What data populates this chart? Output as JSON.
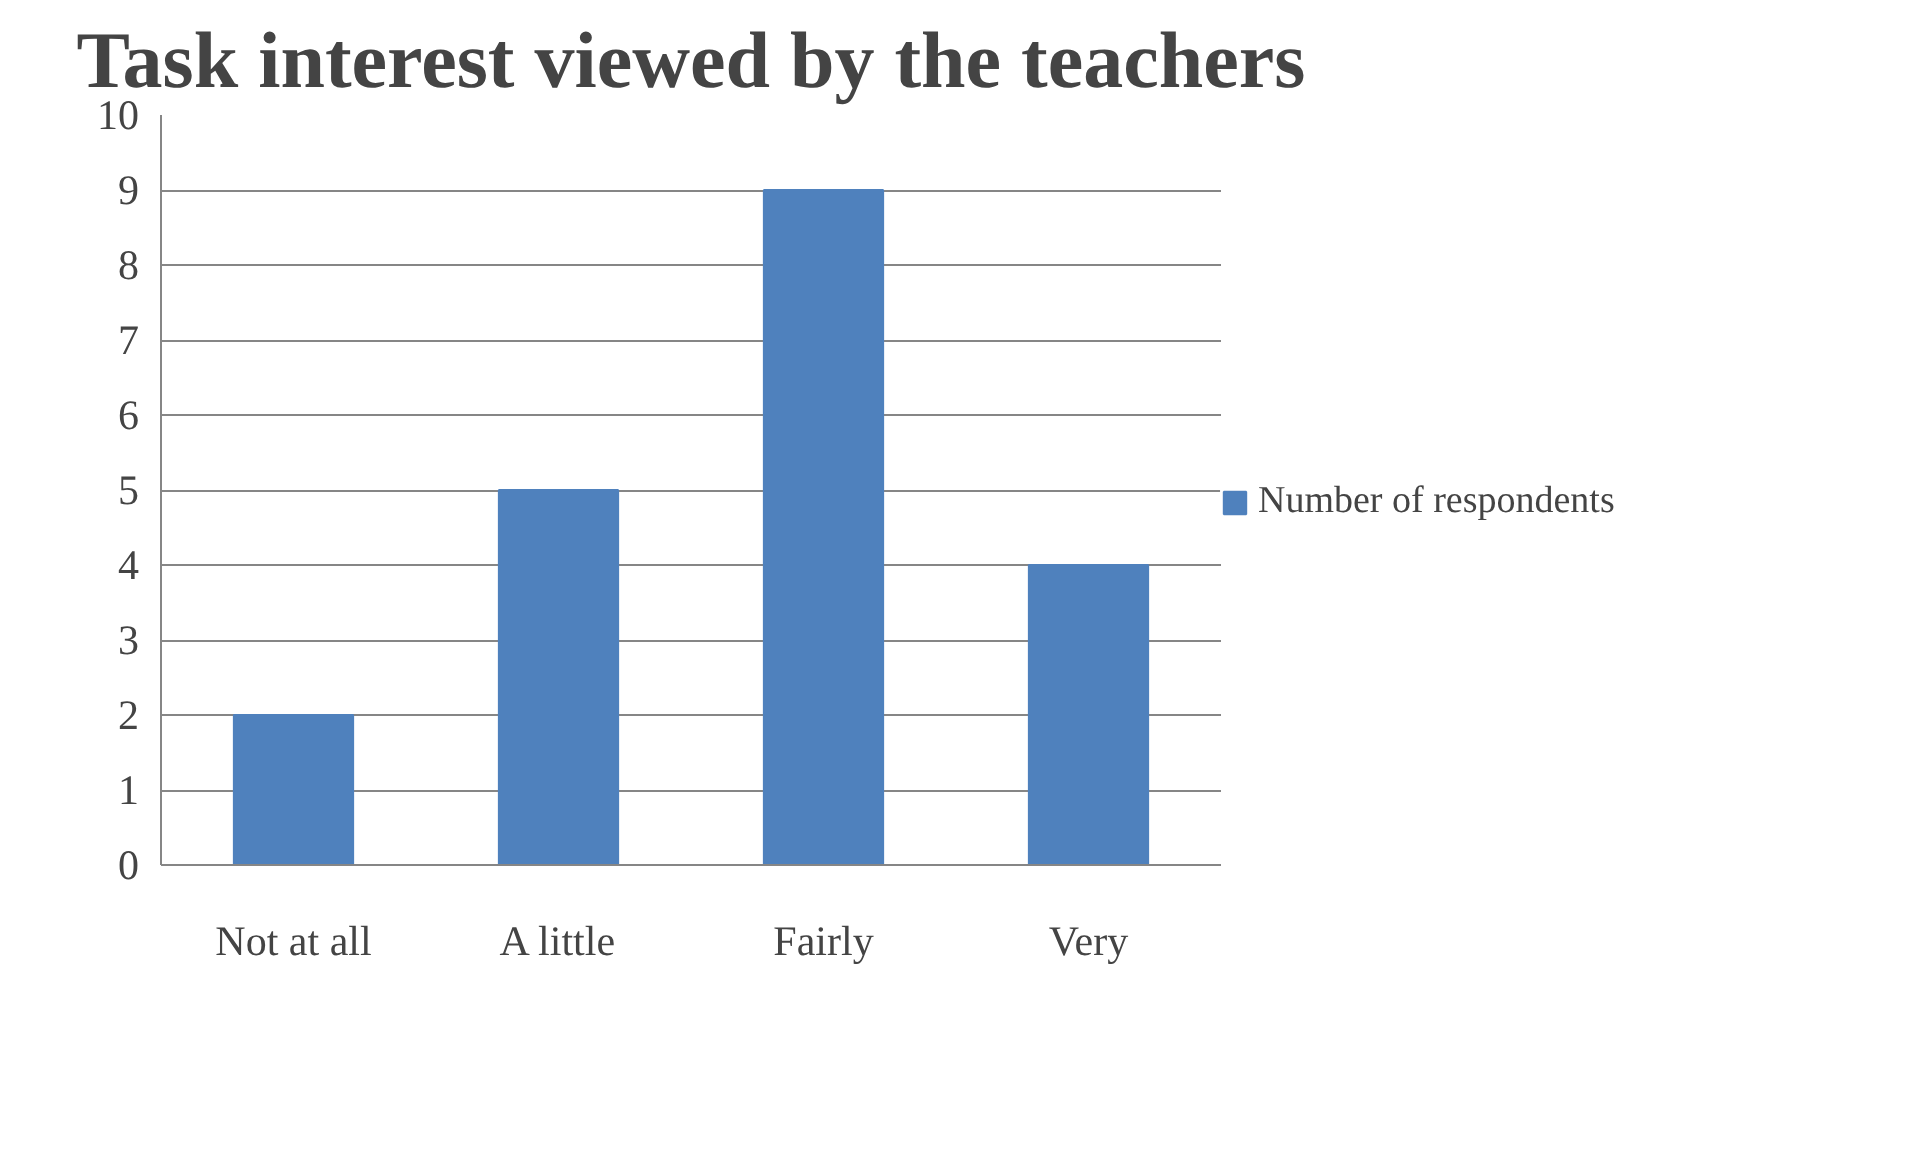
{
  "chart_data": {
    "type": "bar",
    "title": "Task interest viewed by the teachers",
    "categories": [
      "Not at all",
      "A little",
      "Fairly",
      "Very"
    ],
    "series": [
      {
        "name": "Number of respondents",
        "color": "#4f81bd",
        "values": [
          2,
          5,
          9,
          4
        ]
      }
    ],
    "ylim": [
      0,
      10
    ],
    "yticks": [
      0,
      1,
      2,
      3,
      4,
      5,
      6,
      7,
      8,
      9,
      10
    ],
    "grid": "y",
    "legend": "right"
  }
}
